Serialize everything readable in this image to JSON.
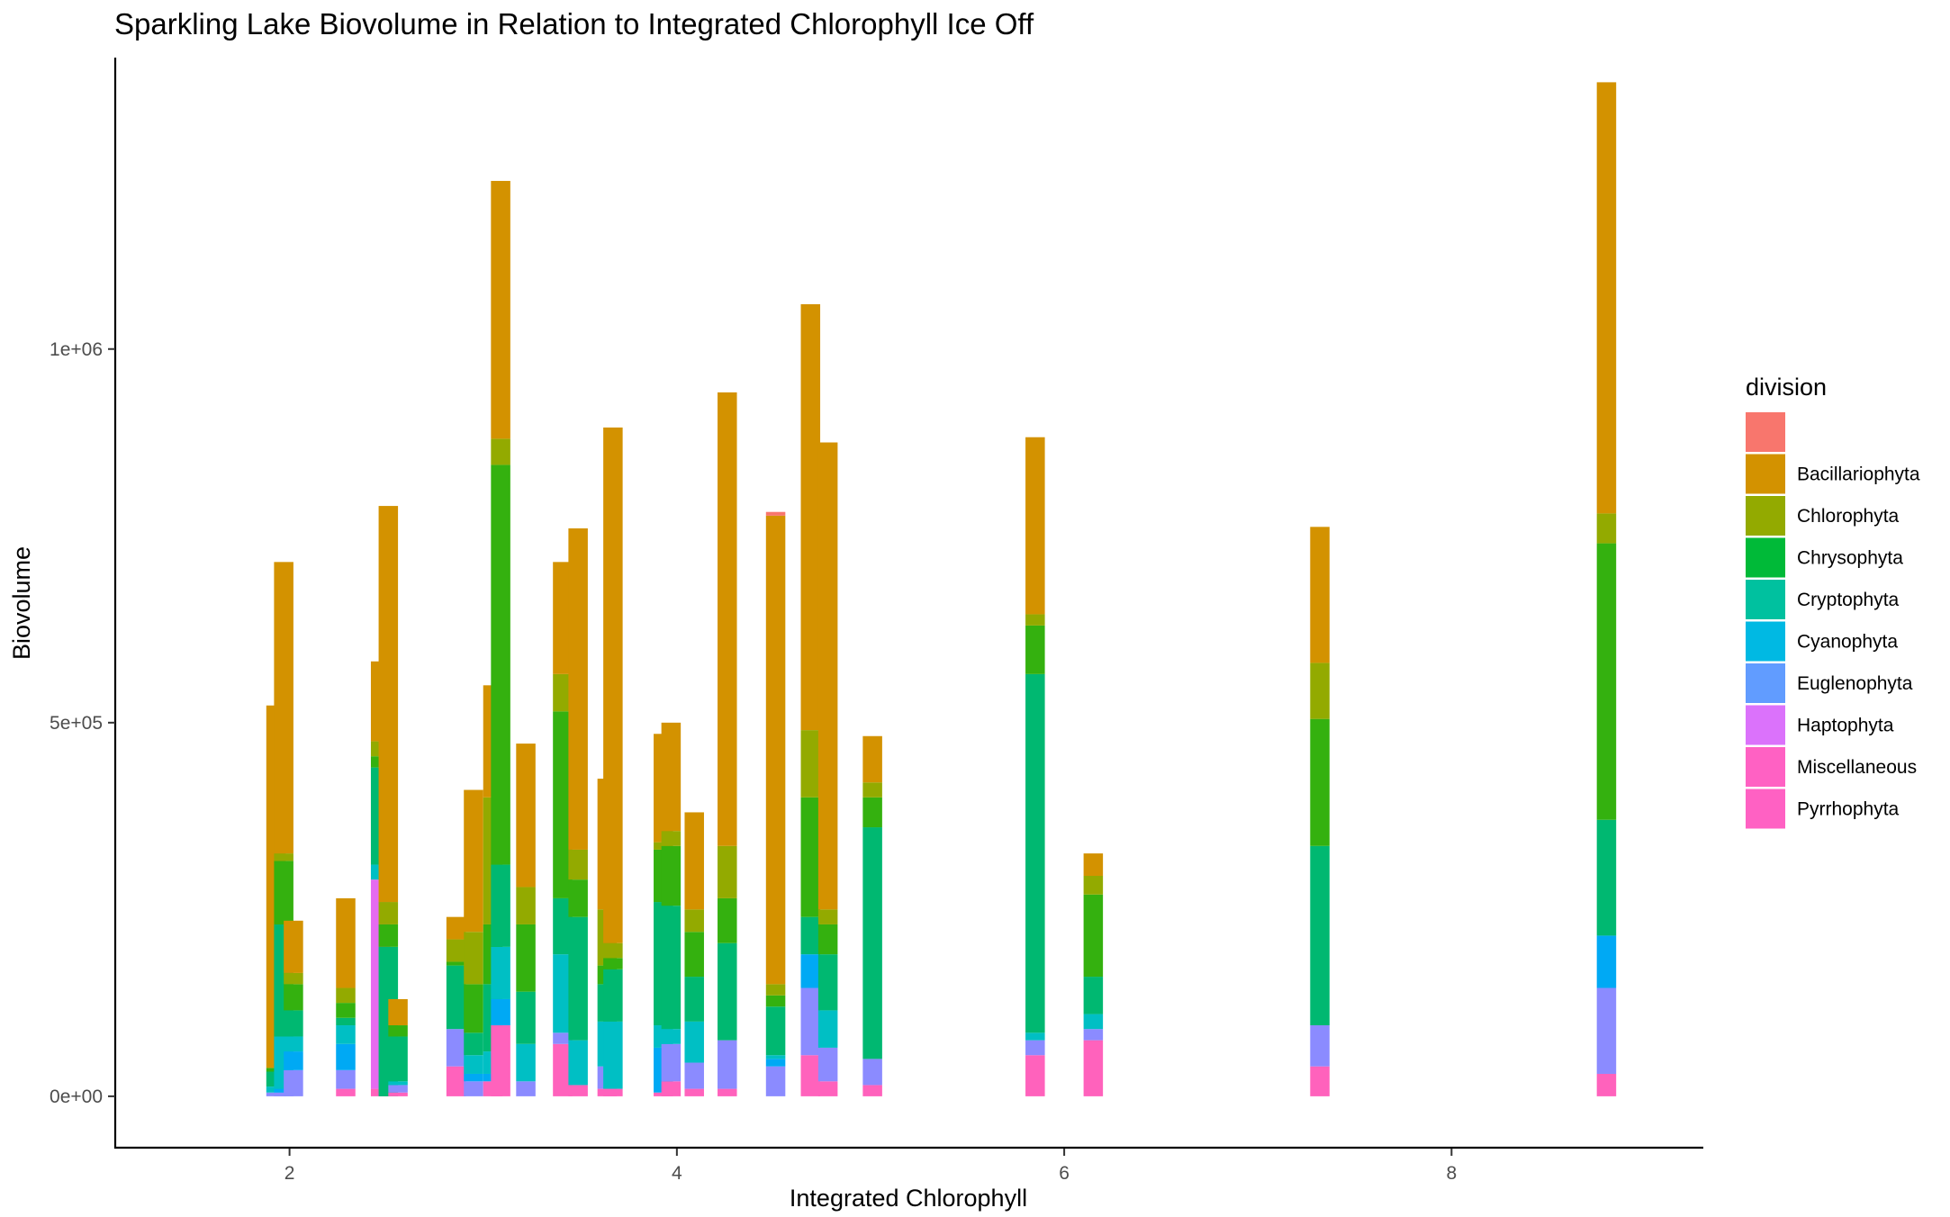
{
  "chart_data": {
    "type": "bar",
    "stacked": true,
    "title": "Sparkling Lake Biovolume in Relation to Integrated Chlorophyll Ice Off",
    "xlabel": "Integrated Chlorophyll",
    "ylabel": "Biovolume",
    "xlim": [
      1.1,
      9.3
    ],
    "ylim": [
      -70000,
      1390000
    ],
    "x_ticks": [
      {
        "value": 2,
        "label": "2"
      },
      {
        "value": 4,
        "label": "4"
      },
      {
        "value": 6,
        "label": "6"
      },
      {
        "value": 8,
        "label": "8"
      }
    ],
    "y_ticks": [
      {
        "value": 0,
        "label": "0e+00"
      },
      {
        "value": 500000,
        "label": "5e+05"
      },
      {
        "value": 1000000,
        "label": "1e+06"
      }
    ],
    "grid": false,
    "bar_width": 0.1,
    "legend": {
      "title": "division",
      "position": "right",
      "entries": [
        {
          "label": "",
          "color": "#F8766D"
        },
        {
          "label": "Bacillariophyta",
          "color": "#D39200"
        },
        {
          "label": "Chlorophyta",
          "color": "#93AA00"
        },
        {
          "label": "Chrysophyta",
          "color": "#00BA38"
        },
        {
          "label": "Cryptophyta",
          "color": "#00C19F"
        },
        {
          "label": "Cyanophyta",
          "color": "#00B9E3"
        },
        {
          "label": "Euglenophyta",
          "color": "#619CFF"
        },
        {
          "label": "Haptophyta",
          "color": "#DB72FB"
        },
        {
          "label": "Miscellaneous",
          "color": "#FF61C3"
        },
        {
          "label": "Pyrrhophyta",
          "color": "#FF61C3"
        }
      ]
    },
    "stack_order": [
      "Pyrrhophyta",
      "Miscellaneous",
      "Haptophyta",
      "Euglenophyta",
      "Cyanophyta",
      "Cryptophyta",
      "Chrysophyta",
      "Chlorophyta",
      "Bacillariophyta",
      ""
    ],
    "colors": {
      "": "#F8766D",
      "Bacillariophyta": "#D39200",
      "Chlorophyta": "#93AA00",
      "Chrysophyta": "#34B10F",
      "Cryptophyta": "#00B871",
      "Cyanophyta": "#00BFC4",
      "Euglenophyta": "#00A9F4",
      "Haptophyta": "#8B8BFF",
      "Miscellaneous": "#E56BF0",
      "Pyrrhophyta": "#FF62BC"
    },
    "bars": [
      {
        "x": 1.93,
        "segments": [
          {
            "d": "Haptophyta",
            "v": 5000
          },
          {
            "d": "Cyanophyta",
            "v": 8000
          },
          {
            "d": "Cryptophyta",
            "v": 20000
          },
          {
            "d": "Chrysophyta",
            "v": 5000
          },
          {
            "d": "Bacillariophyta",
            "v": 485000
          }
        ]
      },
      {
        "x": 1.97,
        "segments": [
          {
            "d": "Haptophyta",
            "v": 5000
          },
          {
            "d": "Euglenophyta",
            "v": 5000
          },
          {
            "d": "Cyanophyta",
            "v": 70000
          },
          {
            "d": "Cryptophyta",
            "v": 150000
          },
          {
            "d": "Chrysophyta",
            "v": 85000
          },
          {
            "d": "Chlorophyta",
            "v": 10000
          },
          {
            "d": "Bacillariophyta",
            "v": 390000
          }
        ]
      },
      {
        "x": 2.02,
        "segments": [
          {
            "d": "Haptophyta",
            "v": 35000
          },
          {
            "d": "Euglenophyta",
            "v": 25000
          },
          {
            "d": "Cyanophyta",
            "v": 20000
          },
          {
            "d": "Cryptophyta",
            "v": 35000
          },
          {
            "d": "Chrysophyta",
            "v": 35000
          },
          {
            "d": "Chlorophyta",
            "v": 15000
          },
          {
            "d": "Bacillariophyta",
            "v": 70000
          }
        ]
      },
      {
        "x": 2.29,
        "segments": [
          {
            "d": "Pyrrhophyta",
            "v": 10000
          },
          {
            "d": "Haptophyta",
            "v": 25000
          },
          {
            "d": "Euglenophyta",
            "v": 35000
          },
          {
            "d": "Cyanophyta",
            "v": 25000
          },
          {
            "d": "Cryptophyta",
            "v": 10000
          },
          {
            "d": "Chrysophyta",
            "v": 20000
          },
          {
            "d": "Chlorophyta",
            "v": 20000
          },
          {
            "d": "Bacillariophyta",
            "v": 120000
          }
        ]
      },
      {
        "x": 2.47,
        "segments": [
          {
            "d": "Pyrrhophyta",
            "v": 10000
          },
          {
            "d": "Miscellaneous",
            "v": 280000
          },
          {
            "d": "Cyanophyta",
            "v": 20000
          },
          {
            "d": "Cryptophyta",
            "v": 130000
          },
          {
            "d": "Chrysophyta",
            "v": 15000
          },
          {
            "d": "Chlorophyta",
            "v": 20000
          },
          {
            "d": "Bacillariophyta",
            "v": 107000
          }
        ]
      },
      {
        "x": 2.51,
        "segments": [
          {
            "d": "Cryptophyta",
            "v": 200000
          },
          {
            "d": "Chrysophyta",
            "v": 30000
          },
          {
            "d": "Chlorophyta",
            "v": 30000
          },
          {
            "d": "Bacillariophyta",
            "v": 530000
          }
        ]
      },
      {
        "x": 2.56,
        "segments": [
          {
            "d": "Pyrrhophyta",
            "v": 5000
          },
          {
            "d": "Haptophyta",
            "v": 10000
          },
          {
            "d": "Cyanophyta",
            "v": 5000
          },
          {
            "d": "Cryptophyta",
            "v": 60000
          },
          {
            "d": "Chrysophyta",
            "v": 15000
          },
          {
            "d": "Bacillariophyta",
            "v": 35000
          }
        ]
      },
      {
        "x": 2.86,
        "segments": [
          {
            "d": "Pyrrhophyta",
            "v": 40000
          },
          {
            "d": "Haptophyta",
            "v": 50000
          },
          {
            "d": "Cryptophyta",
            "v": 85000
          },
          {
            "d": "Chrysophyta",
            "v": 5000
          },
          {
            "d": "Chlorophyta",
            "v": 30000
          },
          {
            "d": "Bacillariophyta",
            "v": 30000
          }
        ]
      },
      {
        "x": 2.95,
        "segments": [
          {
            "d": "Haptophyta",
            "v": 20000
          },
          {
            "d": "Euglenophyta",
            "v": 10000
          },
          {
            "d": "Cyanophyta",
            "v": 25000
          },
          {
            "d": "Cryptophyta",
            "v": 30000
          },
          {
            "d": "Chrysophyta",
            "v": 65000
          },
          {
            "d": "Chlorophyta",
            "v": 70000
          },
          {
            "d": "Bacillariophyta",
            "v": 190000
          }
        ]
      },
      {
        "x": 3.05,
        "segments": [
          {
            "d": "Pyrrhophyta",
            "v": 20000
          },
          {
            "d": "Euglenophyta",
            "v": 10000
          },
          {
            "d": "Cyanophyta",
            "v": 30000
          },
          {
            "d": "Cryptophyta",
            "v": 90000
          },
          {
            "d": "Chrysophyta",
            "v": 80000
          },
          {
            "d": "Chlorophyta",
            "v": 170000
          },
          {
            "d": "Bacillariophyta",
            "v": 150000
          }
        ]
      },
      {
        "x": 3.09,
        "segments": [
          {
            "d": "Pyrrhophyta",
            "v": 95000
          },
          {
            "d": "Euglenophyta",
            "v": 35000
          },
          {
            "d": "Cyanophyta",
            "v": 70000
          },
          {
            "d": "Cryptophyta",
            "v": 110000
          },
          {
            "d": "Chrysophyta",
            "v": 535000
          },
          {
            "d": "Chlorophyta",
            "v": 35000
          },
          {
            "d": "Bacillariophyta",
            "v": 345000
          }
        ]
      },
      {
        "x": 3.22,
        "segments": [
          {
            "d": "Haptophyta",
            "v": 20000
          },
          {
            "d": "Cyanophyta",
            "v": 50000
          },
          {
            "d": "Cryptophyta",
            "v": 70000
          },
          {
            "d": "Chrysophyta",
            "v": 90000
          },
          {
            "d": "Chlorophyta",
            "v": 50000
          },
          {
            "d": "Bacillariophyta",
            "v": 192000
          }
        ]
      },
      {
        "x": 3.41,
        "segments": [
          {
            "d": "Pyrrhophyta",
            "v": 70000
          },
          {
            "d": "Haptophyta",
            "v": 15000
          },
          {
            "d": "Cyanophyta",
            "v": 105000
          },
          {
            "d": "Cryptophyta",
            "v": 75000
          },
          {
            "d": "Chrysophyta",
            "v": 250000
          },
          {
            "d": "Chlorophyta",
            "v": 50000
          },
          {
            "d": "Bacillariophyta",
            "v": 150000
          }
        ]
      },
      {
        "x": 3.49,
        "segments": [
          {
            "d": "Pyrrhophyta",
            "v": 15000
          },
          {
            "d": "Cyanophyta",
            "v": 60000
          },
          {
            "d": "Cryptophyta",
            "v": 165000
          },
          {
            "d": "Chrysophyta",
            "v": 50000
          },
          {
            "d": "Chlorophyta",
            "v": 40000
          },
          {
            "d": "Bacillariophyta",
            "v": 430000
          }
        ]
      },
      {
        "x": 3.64,
        "segments": [
          {
            "d": "Pyrrhophyta",
            "v": 10000
          },
          {
            "d": "Haptophyta",
            "v": 30000
          },
          {
            "d": "Cyanophyta",
            "v": 60000
          },
          {
            "d": "Cryptophyta",
            "v": 50000
          },
          {
            "d": "Chrysophyta",
            "v": 25000
          },
          {
            "d": "Chlorophyta",
            "v": 75000
          },
          {
            "d": "Bacillariophyta",
            "v": 175000
          }
        ]
      },
      {
        "x": 3.67,
        "segments": [
          {
            "d": "Pyrrhophyta",
            "v": 10000
          },
          {
            "d": "Cyanophyta",
            "v": 90000
          },
          {
            "d": "Cryptophyta",
            "v": 70000
          },
          {
            "d": "Chrysophyta",
            "v": 15000
          },
          {
            "d": "Chlorophyta",
            "v": 20000
          },
          {
            "d": "Bacillariophyta",
            "v": 690000
          }
        ]
      },
      {
        "x": 3.93,
        "segments": [
          {
            "d": "Pyrrhophyta",
            "v": 5000
          },
          {
            "d": "Euglenophyta",
            "v": 60000
          },
          {
            "d": "Cyanophyta",
            "v": 30000
          },
          {
            "d": "Cryptophyta",
            "v": 165000
          },
          {
            "d": "Chrysophyta",
            "v": 70000
          },
          {
            "d": "Chlorophyta",
            "v": 10000
          },
          {
            "d": "Bacillariophyta",
            "v": 145000
          }
        ]
      },
      {
        "x": 3.97,
        "segments": [
          {
            "d": "Pyrrhophyta",
            "v": 20000
          },
          {
            "d": "Haptophyta",
            "v": 50000
          },
          {
            "d": "Cyanophyta",
            "v": 20000
          },
          {
            "d": "Cryptophyta",
            "v": 165000
          },
          {
            "d": "Chrysophyta",
            "v": 80000
          },
          {
            "d": "Chlorophyta",
            "v": 20000
          },
          {
            "d": "Bacillariophyta",
            "v": 145000
          }
        ]
      },
      {
        "x": 4.09,
        "segments": [
          {
            "d": "Pyrrhophyta",
            "v": 10000
          },
          {
            "d": "Haptophyta",
            "v": 35000
          },
          {
            "d": "Cyanophyta",
            "v": 55000
          },
          {
            "d": "Cryptophyta",
            "v": 60000
          },
          {
            "d": "Chrysophyta",
            "v": 60000
          },
          {
            "d": "Chlorophyta",
            "v": 30000
          },
          {
            "d": "Bacillariophyta",
            "v": 130000
          }
        ]
      },
      {
        "x": 4.26,
        "segments": [
          {
            "d": "Pyrrhophyta",
            "v": 10000
          },
          {
            "d": "Haptophyta",
            "v": 65000
          },
          {
            "d": "Cryptophyta",
            "v": 130000
          },
          {
            "d": "Chrysophyta",
            "v": 60000
          },
          {
            "d": "Chlorophyta",
            "v": 70000
          },
          {
            "d": "Bacillariophyta",
            "v": 607000
          }
        ]
      },
      {
        "x": 4.51,
        "segments": [
          {
            "d": "Haptophyta",
            "v": 40000
          },
          {
            "d": "Euglenophyta",
            "v": 10000
          },
          {
            "d": "Cyanophyta",
            "v": 5000
          },
          {
            "d": "Cryptophyta",
            "v": 65000
          },
          {
            "d": "Chrysophyta",
            "v": 15000
          },
          {
            "d": "Chlorophyta",
            "v": 15000
          },
          {
            "d": "Bacillariophyta",
            "v": 627000
          },
          {
            "d": "",
            "v": 5000
          }
        ]
      },
      {
        "x": 4.69,
        "segments": [
          {
            "d": "Pyrrhophyta",
            "v": 55000
          },
          {
            "d": "Haptophyta",
            "v": 90000
          },
          {
            "d": "Euglenophyta",
            "v": 45000
          },
          {
            "d": "Cryptophyta",
            "v": 50000
          },
          {
            "d": "Chrysophyta",
            "v": 160000
          },
          {
            "d": "Chlorophyta",
            "v": 90000
          },
          {
            "d": "Bacillariophyta",
            "v": 570000
          }
        ]
      },
      {
        "x": 4.78,
        "segments": [
          {
            "d": "Pyrrhophyta",
            "v": 20000
          },
          {
            "d": "Haptophyta",
            "v": 45000
          },
          {
            "d": "Cyanophyta",
            "v": 50000
          },
          {
            "d": "Cryptophyta",
            "v": 75000
          },
          {
            "d": "Chrysophyta",
            "v": 40000
          },
          {
            "d": "Chlorophyta",
            "v": 20000
          },
          {
            "d": "Bacillariophyta",
            "v": 625000
          }
        ]
      },
      {
        "x": 5.01,
        "segments": [
          {
            "d": "Pyrrhophyta",
            "v": 15000
          },
          {
            "d": "Haptophyta",
            "v": 35000
          },
          {
            "d": "Cryptophyta",
            "v": 310000
          },
          {
            "d": "Chrysophyta",
            "v": 40000
          },
          {
            "d": "Chlorophyta",
            "v": 20000
          },
          {
            "d": "Bacillariophyta",
            "v": 62000
          }
        ]
      },
      {
        "x": 5.85,
        "segments": [
          {
            "d": "Pyrrhophyta",
            "v": 55000
          },
          {
            "d": "Haptophyta",
            "v": 20000
          },
          {
            "d": "Cyanophyta",
            "v": 10000
          },
          {
            "d": "Cryptophyta",
            "v": 480000
          },
          {
            "d": "Chrysophyta",
            "v": 65000
          },
          {
            "d": "Chlorophyta",
            "v": 15000
          },
          {
            "d": "Bacillariophyta",
            "v": 237000
          }
        ]
      },
      {
        "x": 6.15,
        "segments": [
          {
            "d": "Pyrrhophyta",
            "v": 75000
          },
          {
            "d": "Haptophyta",
            "v": 15000
          },
          {
            "d": "Cyanophyta",
            "v": 20000
          },
          {
            "d": "Cryptophyta",
            "v": 50000
          },
          {
            "d": "Chrysophyta",
            "v": 110000
          },
          {
            "d": "Chlorophyta",
            "v": 25000
          },
          {
            "d": "Bacillariophyta",
            "v": 30000
          }
        ]
      },
      {
        "x": 7.32,
        "segments": [
          {
            "d": "Pyrrhophyta",
            "v": 40000
          },
          {
            "d": "Haptophyta",
            "v": 55000
          },
          {
            "d": "Cryptophyta",
            "v": 240000
          },
          {
            "d": "Chrysophyta",
            "v": 170000
          },
          {
            "d": "Chlorophyta",
            "v": 75000
          },
          {
            "d": "Bacillariophyta",
            "v": 182000
          }
        ]
      },
      {
        "x": 8.8,
        "segments": [
          {
            "d": "Pyrrhophyta",
            "v": 30000
          },
          {
            "d": "Haptophyta",
            "v": 115000
          },
          {
            "d": "Euglenophyta",
            "v": 70000
          },
          {
            "d": "Cryptophyta",
            "v": 155000
          },
          {
            "d": "Chrysophyta",
            "v": 370000
          },
          {
            "d": "Chlorophyta",
            "v": 40000
          },
          {
            "d": "Bacillariophyta",
            "v": 577000
          }
        ]
      }
    ]
  }
}
